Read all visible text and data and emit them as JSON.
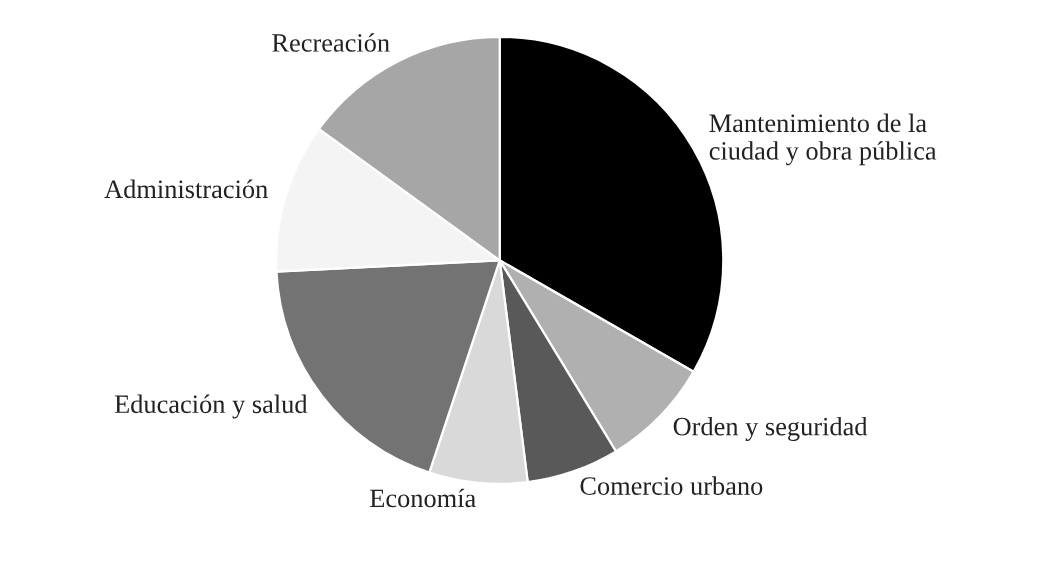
{
  "chart_data": {
    "type": "pie",
    "categories": [
      "Mantenimiento de la\nciudad y obra pública",
      "Orden y seguridad",
      "Comercio urbano",
      "Economía",
      "Educación y salud",
      "Administración",
      "Recreación"
    ],
    "values": [
      33.3,
      8,
      6.7,
      7.1,
      19.1,
      10.8,
      15
    ],
    "colors": [
      "#000000",
      "#b0b0b0",
      "#595959",
      "#d9d9d9",
      "#737373",
      "#f4f4f4",
      "#a6a6a6"
    ]
  }
}
